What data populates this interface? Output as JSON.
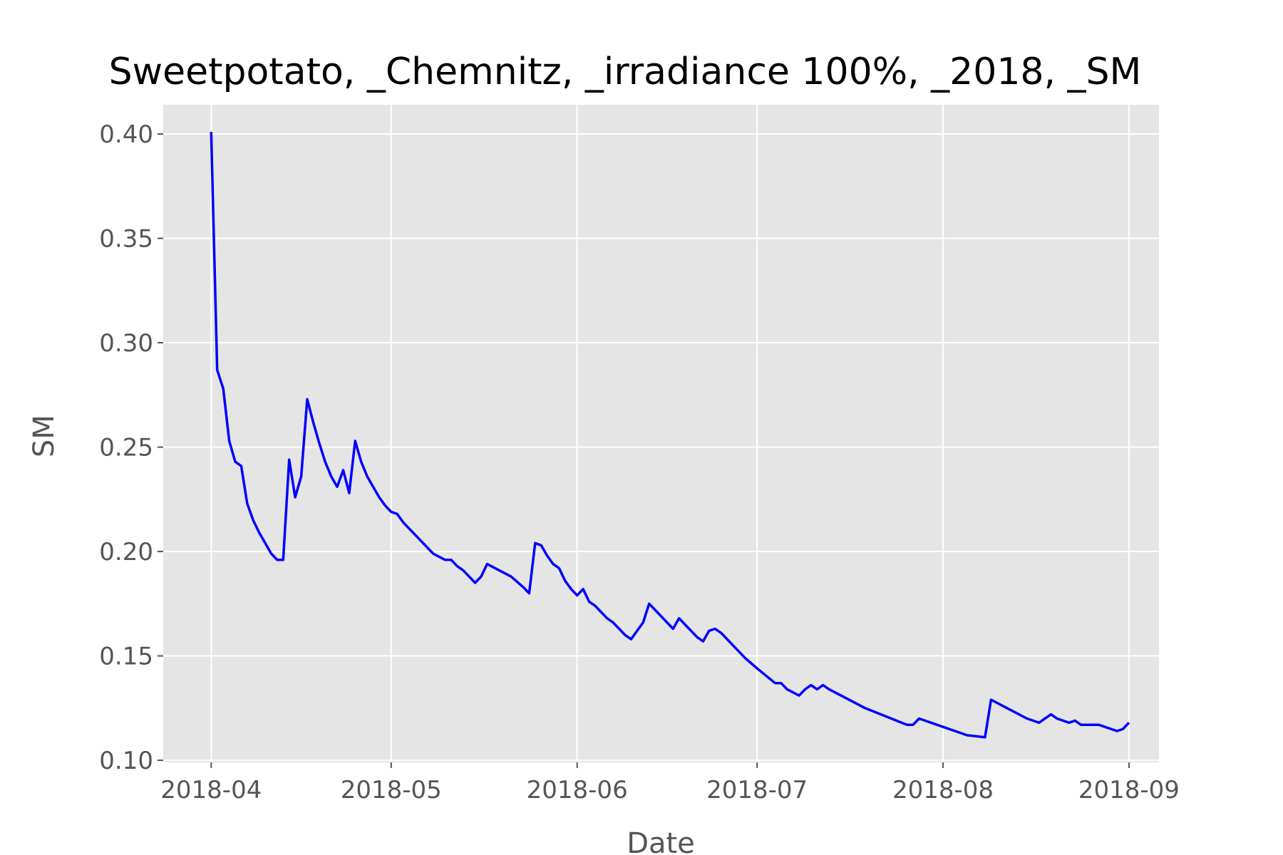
{
  "chart_data": {
    "type": "line",
    "title": "Sweetpotato, _Chemnitz, _irradiance 100%, _2018, _SM",
    "xlabel": "Date",
    "ylabel": "SM",
    "xlim": [
      "2018-03-24",
      "2018-09-06"
    ],
    "ylim": [
      0.099,
      0.414
    ],
    "x_ticks": [
      "2018-04",
      "2018-05",
      "2018-06",
      "2018-07",
      "2018-08",
      "2018-09"
    ],
    "y_ticks": [
      "0.10",
      "0.15",
      "0.20",
      "0.25",
      "0.30",
      "0.35",
      "0.40"
    ],
    "grid": true,
    "legend": "none",
    "series_color": "#0000ff",
    "background_color": "#e5e5e5",
    "series": [
      {
        "x": [
          "2018-04-01",
          "2018-04-02",
          "2018-04-03",
          "2018-04-04",
          "2018-04-05",
          "2018-04-06",
          "2018-04-07",
          "2018-04-08",
          "2018-04-09",
          "2018-04-10",
          "2018-04-11",
          "2018-04-12",
          "2018-04-13",
          "2018-04-14",
          "2018-04-15",
          "2018-04-16",
          "2018-04-17",
          "2018-04-18",
          "2018-04-19",
          "2018-04-20",
          "2018-04-21",
          "2018-04-22",
          "2018-04-23",
          "2018-04-24",
          "2018-04-25",
          "2018-04-26",
          "2018-04-27",
          "2018-04-28",
          "2018-04-29",
          "2018-04-30",
          "2018-05-01",
          "2018-05-02",
          "2018-05-03",
          "2018-05-04",
          "2018-05-06",
          "2018-05-08",
          "2018-05-10",
          "2018-05-11",
          "2018-05-12",
          "2018-05-13",
          "2018-05-14",
          "2018-05-15",
          "2018-05-16",
          "2018-05-17",
          "2018-05-19",
          "2018-05-21",
          "2018-05-23",
          "2018-05-24",
          "2018-05-25",
          "2018-05-26",
          "2018-05-27",
          "2018-05-28",
          "2018-05-29",
          "2018-05-30",
          "2018-05-31",
          "2018-06-01",
          "2018-06-02",
          "2018-06-03",
          "2018-06-04",
          "2018-06-05",
          "2018-06-06",
          "2018-06-07",
          "2018-06-08",
          "2018-06-09",
          "2018-06-10",
          "2018-06-11",
          "2018-06-12",
          "2018-06-13",
          "2018-06-14",
          "2018-06-17",
          "2018-06-18",
          "2018-06-21",
          "2018-06-22",
          "2018-06-23",
          "2018-06-24",
          "2018-06-25",
          "2018-06-26",
          "2018-06-27",
          "2018-06-28",
          "2018-06-29",
          "2018-07-01",
          "2018-07-04",
          "2018-07-05",
          "2018-07-06",
          "2018-07-08",
          "2018-07-09",
          "2018-07-10",
          "2018-07-11",
          "2018-07-12",
          "2018-07-13",
          "2018-07-15",
          "2018-07-19",
          "2018-07-26",
          "2018-07-27",
          "2018-07-28",
          "2018-07-29",
          "2018-07-30",
          "2018-08-01",
          "2018-08-03",
          "2018-08-05",
          "2018-08-08",
          "2018-08-09",
          "2018-08-11",
          "2018-08-13",
          "2018-08-15",
          "2018-08-16",
          "2018-08-17",
          "2018-08-19",
          "2018-08-20",
          "2018-08-21",
          "2018-08-22",
          "2018-08-23",
          "2018-08-24",
          "2018-08-25",
          "2018-08-27",
          "2018-08-29",
          "2018-08-30",
          "2018-08-31",
          "2018-09-01"
        ],
        "y": [
          0.401,
          0.287,
          0.278,
          0.253,
          0.243,
          0.241,
          0.223,
          0.215,
          0.209,
          0.204,
          0.199,
          0.196,
          0.196,
          0.244,
          0.226,
          0.236,
          0.273,
          0.262,
          0.252,
          0.243,
          0.236,
          0.231,
          0.239,
          0.228,
          0.253,
          0.243,
          0.236,
          0.231,
          0.226,
          0.222,
          0.219,
          0.218,
          0.214,
          0.211,
          0.205,
          0.199,
          0.196,
          0.196,
          0.193,
          0.191,
          0.188,
          0.185,
          0.188,
          0.194,
          0.191,
          0.188,
          0.183,
          0.18,
          0.204,
          0.203,
          0.198,
          0.194,
          0.192,
          0.186,
          0.182,
          0.179,
          0.182,
          0.176,
          0.174,
          0.171,
          0.168,
          0.166,
          0.163,
          0.16,
          0.158,
          0.162,
          0.166,
          0.175,
          0.172,
          0.163,
          0.168,
          0.159,
          0.157,
          0.162,
          0.163,
          0.161,
          0.158,
          0.155,
          0.152,
          0.149,
          0.144,
          0.137,
          0.137,
          0.134,
          0.131,
          0.134,
          0.136,
          0.134,
          0.136,
          0.134,
          0.131,
          0.125,
          0.117,
          0.117,
          0.12,
          0.119,
          0.118,
          0.116,
          0.114,
          0.112,
          0.111,
          0.129,
          0.126,
          0.123,
          0.12,
          0.119,
          0.118,
          0.122,
          0.12,
          0.119,
          0.118,
          0.119,
          0.117,
          0.117,
          0.117,
          0.115,
          0.114,
          0.115,
          0.118
        ]
      }
    ]
  }
}
